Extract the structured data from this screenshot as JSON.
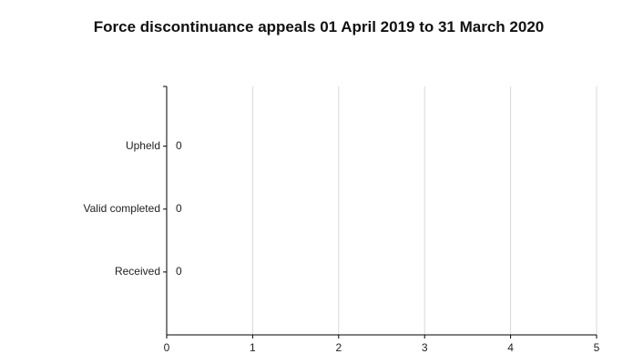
{
  "chart_data": {
    "type": "barh",
    "title": "Force discontinuance appeals 01 April 2019 to 31 March 2020",
    "categories": [
      "Upheld",
      "Valid completed",
      "Received"
    ],
    "values": [
      0,
      0,
      0
    ],
    "color": "#4472c4",
    "xlim": [
      0,
      5
    ],
    "xticks": [
      0,
      1,
      2,
      3,
      4,
      5
    ],
    "grid": true
  }
}
